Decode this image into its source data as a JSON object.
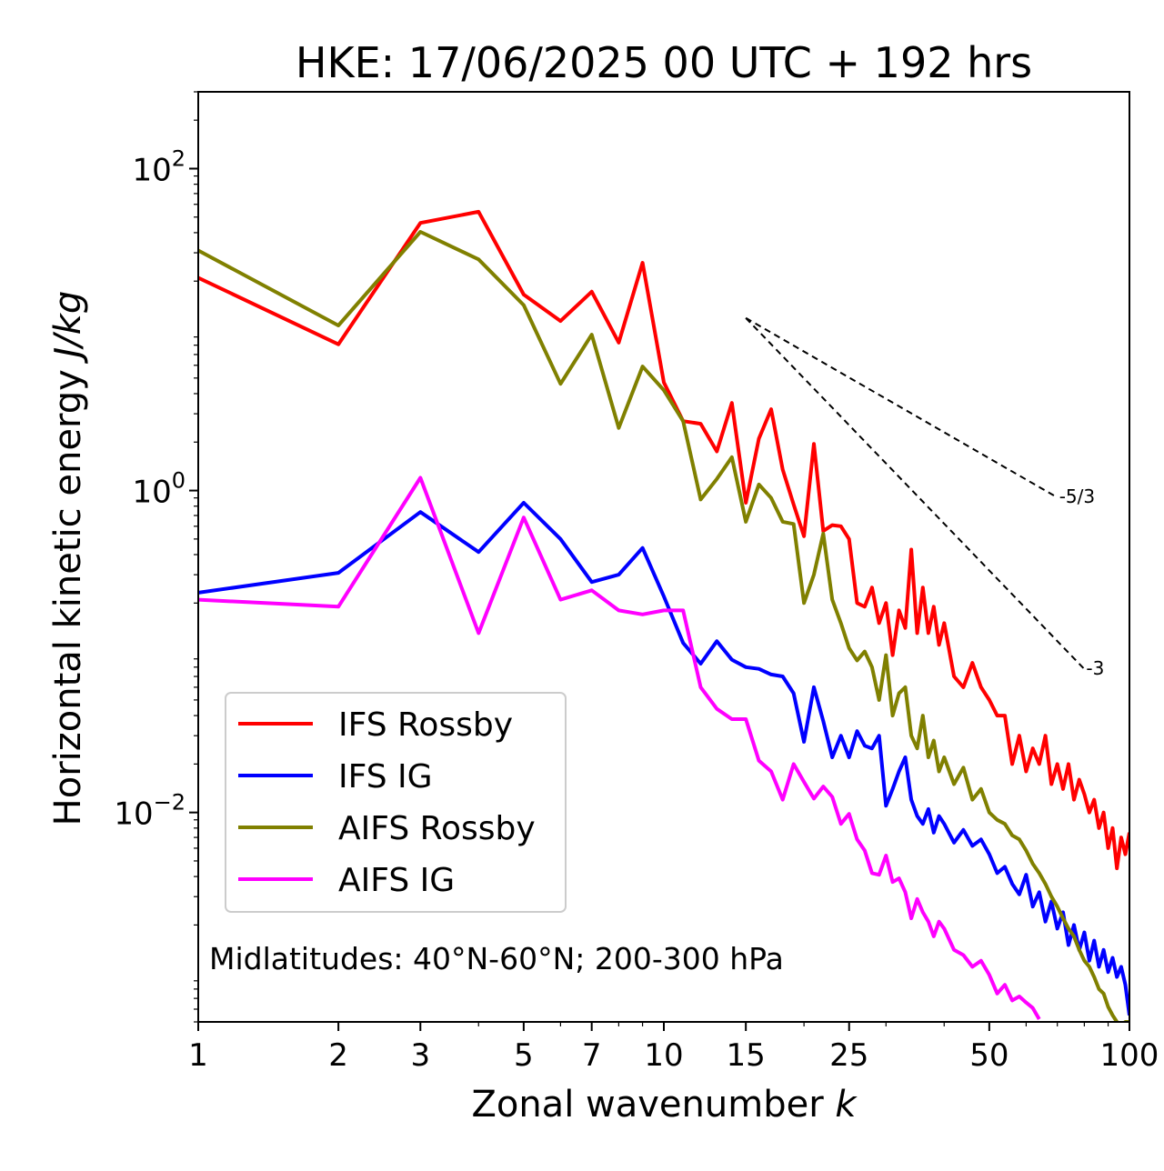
{
  "chart_data": {
    "type": "line",
    "title": "HKE: 17/06/2025 00 UTC + 192 hrs",
    "xlabel": "Zonal wavenumber",
    "xlabel_italic": "k",
    "ylabel": "Horizontal kinetic energy",
    "ylabel_italic": "J/kg",
    "xscale": "log",
    "yscale": "log",
    "xlim": [
      1,
      100
    ],
    "ylim": [
      0.0005,
      300
    ],
    "xticks": [
      {
        "value": 1,
        "label": "1"
      },
      {
        "value": 2,
        "label": "2"
      },
      {
        "value": 3,
        "label": "3"
      },
      {
        "value": 5,
        "label": "5"
      },
      {
        "value": 7,
        "label": "7"
      },
      {
        "value": 10,
        "label": "10"
      },
      {
        "value": 15,
        "label": "15"
      },
      {
        "value": 25,
        "label": "25"
      },
      {
        "value": 50,
        "label": "50"
      },
      {
        "value": 100,
        "label": "100"
      }
    ],
    "yticks": [
      {
        "value": 100,
        "base": "10",
        "exp": "2"
      },
      {
        "value": 1,
        "base": "10",
        "exp": "0"
      },
      {
        "value": 0.01,
        "base": "10",
        "exp": "−2"
      }
    ],
    "annotation": "Midlatitudes: 40°N-60°N; 200-300 hPa",
    "legend_position": "lower-left",
    "reference_lines": [
      {
        "label": "-5/3",
        "slope": -1.6667,
        "x": [
          15,
          70
        ],
        "y0": 11.8
      },
      {
        "label": "-3",
        "slope": -3,
        "x": [
          15,
          80
        ],
        "y0": 11.8
      }
    ],
    "series": [
      {
        "name": "IFS Rossby",
        "color": "#ff0000",
        "x": [
          1,
          2,
          3,
          4,
          5,
          6,
          7,
          8,
          9,
          10,
          11,
          12,
          13,
          14,
          15,
          16,
          17,
          18,
          19,
          20,
          21,
          22,
          23,
          24,
          25,
          26,
          27,
          28,
          29,
          30,
          31,
          32,
          33,
          34,
          35,
          36,
          37,
          38,
          39,
          40,
          42,
          44,
          46,
          48,
          50,
          52,
          54,
          56,
          58,
          60,
          62,
          64,
          66,
          68,
          70,
          72,
          74,
          76,
          78,
          80,
          82,
          84,
          86,
          88,
          90,
          92,
          94,
          96,
          98,
          100
        ],
        "y": [
          21,
          8.1,
          46,
          54,
          16.5,
          11.3,
          17.2,
          8.3,
          26,
          4.7,
          2.7,
          2.6,
          1.75,
          3.5,
          0.84,
          2.1,
          3.2,
          1.35,
          0.82,
          0.52,
          1.95,
          0.56,
          0.61,
          0.6,
          0.5,
          0.2,
          0.19,
          0.25,
          0.15,
          0.2,
          0.095,
          0.18,
          0.14,
          0.43,
          0.13,
          0.25,
          0.13,
          0.19,
          0.11,
          0.15,
          0.07,
          0.06,
          0.085,
          0.06,
          0.05,
          0.04,
          0.04,
          0.02,
          0.03,
          0.018,
          0.025,
          0.02,
          0.03,
          0.015,
          0.02,
          0.014,
          0.02,
          0.012,
          0.016,
          0.013,
          0.01,
          0.012,
          0.008,
          0.01,
          0.006,
          0.008,
          0.0045,
          0.007,
          0.0055,
          0.0075
        ]
      },
      {
        "name": "IFS IG",
        "color": "#0000ff",
        "x": [
          1,
          2,
          3,
          4,
          5,
          6,
          7,
          8,
          9,
          10,
          11,
          12,
          13,
          14,
          15,
          16,
          17,
          18,
          19,
          20,
          21,
          22,
          23,
          24,
          25,
          26,
          27,
          28,
          29,
          30,
          31,
          32,
          33,
          34,
          35,
          36,
          37,
          38,
          39,
          40,
          42,
          44,
          46,
          48,
          50,
          52,
          54,
          56,
          58,
          60,
          62,
          64,
          66,
          68,
          70,
          72,
          74,
          76,
          78,
          80,
          82,
          84,
          86,
          88,
          90,
          92,
          94,
          96,
          98,
          100
        ],
        "y": [
          0.232,
          0.308,
          0.735,
          0.415,
          0.84,
          0.5,
          0.27,
          0.3,
          0.44,
          0.22,
          0.113,
          0.084,
          0.116,
          0.089,
          0.08,
          0.078,
          0.072,
          0.07,
          0.055,
          0.0275,
          0.06,
          0.037,
          0.022,
          0.03,
          0.022,
          0.032,
          0.026,
          0.025,
          0.03,
          0.011,
          0.014,
          0.018,
          0.022,
          0.012,
          0.0095,
          0.0085,
          0.0105,
          0.0075,
          0.0095,
          0.0085,
          0.0065,
          0.0078,
          0.0062,
          0.0068,
          0.0055,
          0.0042,
          0.0046,
          0.0036,
          0.0031,
          0.0041,
          0.0026,
          0.0032,
          0.0021,
          0.0028,
          0.0019,
          0.0024,
          0.0015,
          0.002,
          0.0014,
          0.0018,
          0.0012,
          0.0016,
          0.0011,
          0.0014,
          0.00102,
          0.00125,
          0.00095,
          0.0011,
          0.00085,
          0.00055
        ]
      },
      {
        "name": "AIFS Rossby",
        "color": "#808000",
        "x": [
          1,
          2,
          3,
          4,
          5,
          6,
          7,
          8,
          9,
          10,
          11,
          12,
          13,
          14,
          15,
          16,
          17,
          18,
          19,
          20,
          21,
          22,
          23,
          24,
          25,
          26,
          27,
          28,
          29,
          30,
          31,
          32,
          33,
          34,
          35,
          36,
          37,
          38,
          39,
          40,
          42,
          44,
          46,
          48,
          50,
          52,
          54,
          56,
          58,
          60,
          62,
          64,
          66,
          68,
          70,
          72,
          74,
          76,
          78,
          80,
          82,
          84,
          86,
          88,
          90,
          92,
          94,
          96,
          98,
          100
        ],
        "y": [
          31,
          10.6,
          40.5,
          27.3,
          14.2,
          4.6,
          9.3,
          2.45,
          5.9,
          4.2,
          2.7,
          0.88,
          1.18,
          1.61,
          0.64,
          1.09,
          0.9,
          0.64,
          0.62,
          0.2,
          0.3,
          0.54,
          0.21,
          0.15,
          0.105,
          0.088,
          0.1,
          0.08,
          0.05,
          0.095,
          0.04,
          0.055,
          0.06,
          0.03,
          0.025,
          0.04,
          0.022,
          0.028,
          0.018,
          0.022,
          0.015,
          0.019,
          0.012,
          0.014,
          0.01,
          0.009,
          0.0085,
          0.0072,
          0.0068,
          0.0058,
          0.0048,
          0.0042,
          0.0036,
          0.003,
          0.0026,
          0.0022,
          0.0019,
          0.0017,
          0.0014,
          0.0012,
          0.0011,
          0.00095,
          0.0008,
          0.00075,
          0.00062,
          0.00055,
          0.0005,
          0.00048,
          0.0005,
          0.0005
        ]
      },
      {
        "name": "AIFS IG",
        "color": "#ff00ff",
        "x": [
          1,
          2,
          3,
          4,
          5,
          6,
          7,
          8,
          9,
          10,
          11,
          12,
          13,
          14,
          15,
          16,
          17,
          18,
          19,
          20,
          21,
          22,
          23,
          24,
          25,
          26,
          27,
          28,
          29,
          30,
          31,
          32,
          33,
          34,
          35,
          36,
          37,
          38,
          39,
          40,
          42,
          44,
          46,
          48,
          50,
          52,
          54,
          56,
          58,
          60,
          62,
          64
        ],
        "y": [
          0.21,
          0.19,
          1.2,
          0.13,
          0.68,
          0.21,
          0.24,
          0.18,
          0.17,
          0.18,
          0.18,
          0.06,
          0.044,
          0.038,
          0.038,
          0.021,
          0.018,
          0.012,
          0.02,
          0.0155,
          0.0122,
          0.0145,
          0.0125,
          0.0085,
          0.0098,
          0.0068,
          0.0058,
          0.0042,
          0.0041,
          0.0054,
          0.0037,
          0.0039,
          0.0032,
          0.0022,
          0.0029,
          0.0024,
          0.0021,
          0.0017,
          0.0021,
          0.0019,
          0.0014,
          0.0013,
          0.0011,
          0.0012,
          0.00098,
          0.00075,
          0.00085,
          0.00068,
          0.00072,
          0.00066,
          0.00061,
          0.00052
        ]
      }
    ]
  }
}
